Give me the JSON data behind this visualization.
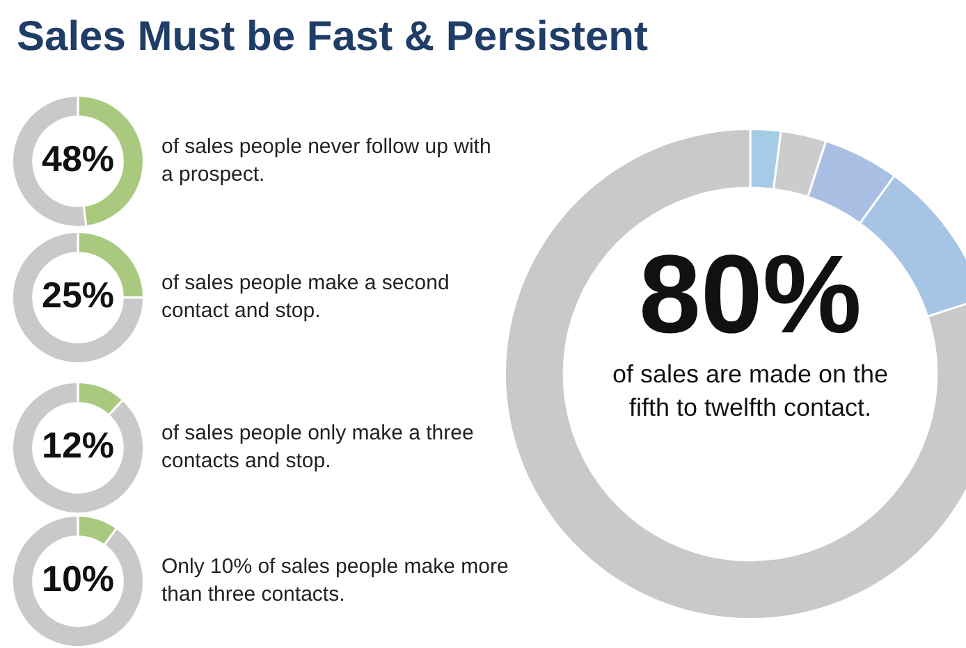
{
  "chart_data": [
    {
      "type": "donut",
      "title": "Sales Must be Fast & Persistent",
      "categories": [
        null,
        null
      ],
      "values": [
        48,
        52
      ],
      "colors": [
        "#a9c97f",
        "#c9c9c9"
      ],
      "value_labels": [
        "48%",
        null
      ],
      "annotations": [
        "of sales people never follow up with a prospect."
      ],
      "legend": false
    },
    {
      "type": "donut",
      "categories": [
        null,
        null
      ],
      "values": [
        25,
        75
      ],
      "colors": [
        "#a9c97f",
        "#c9c9c9"
      ],
      "value_labels": [
        "25%",
        null
      ],
      "annotations": [
        "of sales people make a second contact and stop."
      ],
      "legend": false
    },
    {
      "type": "donut",
      "categories": [
        null,
        null
      ],
      "values": [
        12,
        88
      ],
      "colors": [
        "#a9c97f",
        "#c9c9c9"
      ],
      "value_labels": [
        "12%",
        null
      ],
      "annotations": [
        "of sales people only make a three contacts and stop."
      ],
      "legend": false
    },
    {
      "type": "donut",
      "categories": [
        null,
        null
      ],
      "values": [
        10,
        90
      ],
      "colors": [
        "#a9c97f",
        "#c9c9c9"
      ],
      "value_labels": [
        "10%",
        null
      ],
      "annotations": [
        "Only 10% of sales people make more than three contacts."
      ],
      "legend": false
    },
    {
      "type": "donut",
      "categories": [
        null,
        null,
        null,
        null,
        null
      ],
      "values": [
        2,
        3,
        5,
        10,
        80
      ],
      "colors": [
        "#a6cbe6",
        "#cccccc",
        "#a9bfe3",
        "#a6c4e4",
        "#c9c9c9"
      ],
      "value_labels": [
        null,
        null,
        null,
        null,
        "80%"
      ],
      "annotations": [
        "of sales are made on the fifth to twelfth contact."
      ],
      "legend": false
    }
  ]
}
